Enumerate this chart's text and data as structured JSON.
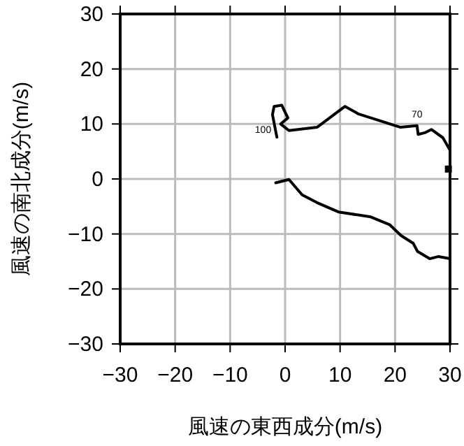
{
  "chart_data": {
    "type": "line",
    "xlabel": "風速の東西成分(m/s)",
    "ylabel": "風速の南北成分(m/s)",
    "xlim": [
      -30,
      30
    ],
    "ylim": [
      -30,
      30
    ],
    "xticks": [
      -30,
      -20,
      -10,
      0,
      10,
      20,
      30
    ],
    "yticks": [
      -30,
      -20,
      -10,
      0,
      10,
      20,
      30
    ],
    "grid": true,
    "series": [
      {
        "color": "#000000",
        "x": [
          -1.7,
          0.7,
          3.1,
          5.8,
          9.7,
          15.6,
          19.0,
          21.1,
          23.3,
          24.1,
          26.3,
          27.9,
          30
        ],
        "values": [
          -0.7,
          -0.1,
          -2.9,
          -4.3,
          -6.0,
          -6.9,
          -8.3,
          -10.3,
          -11.7,
          -13.2,
          -14.5,
          -14.1,
          -14.5
        ]
      },
      {
        "color": "#000000",
        "x": [
          29.9,
          28.7,
          26.6,
          25.4,
          24.2,
          24.0,
          21.0,
          13.4,
          10.9,
          5.8,
          0.7,
          -0.8,
          0.5,
          -0.6,
          -2.0,
          -2.3,
          -1.5
        ],
        "values": [
          5.4,
          7.5,
          9.0,
          8.4,
          8.1,
          9.7,
          9.4,
          11.8,
          13.2,
          9.4,
          8.8,
          10.0,
          11.1,
          13.4,
          13.2,
          11.7,
          7.6
        ]
      },
      {
        "type": "scatter",
        "marker": "square",
        "color": "#000000",
        "x": [
          29.7
        ],
        "values": [
          1.8
        ]
      }
    ],
    "annotations": [
      {
        "text": "100",
        "x": -1.5,
        "y": 7.6
      },
      {
        "text": "70",
        "x": 24.0,
        "y": 9.7
      }
    ]
  }
}
